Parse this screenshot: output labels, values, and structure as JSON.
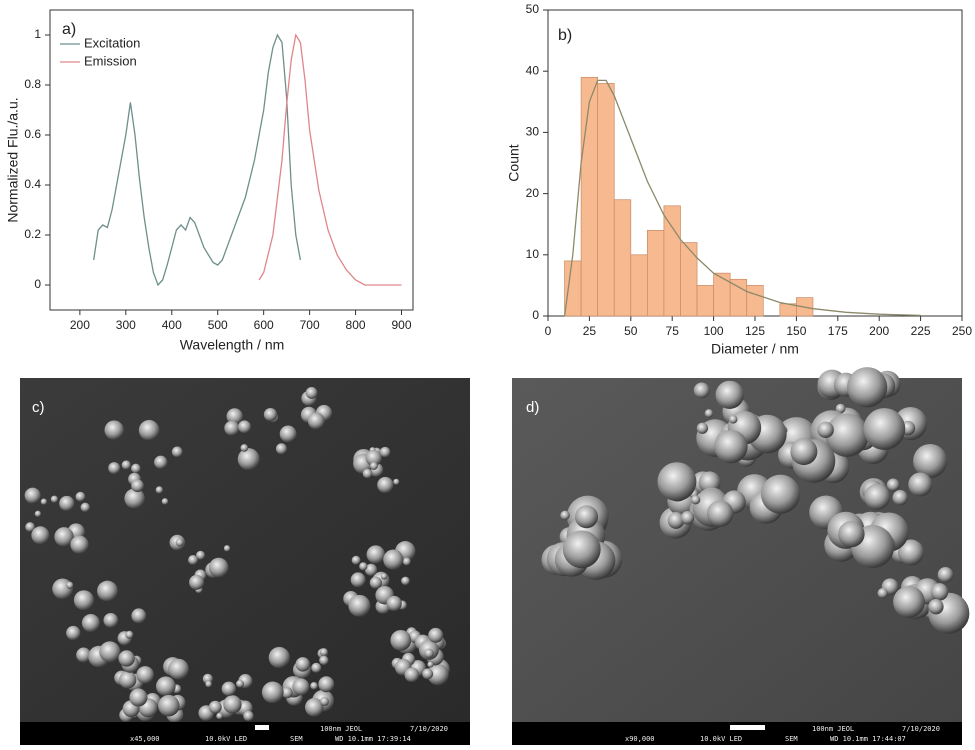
{
  "chart_data": [
    {
      "type": "line",
      "annotation": "a)",
      "xlabel": "Wavelength / nm",
      "ylabel": "Normalized Flu./a.u.",
      "xlim": [
        135,
        925
      ],
      "xticks": [
        200,
        300,
        400,
        500,
        600,
        700,
        800,
        900
      ],
      "ylim": [
        -0.1,
        1.1
      ],
      "yticks": [
        0,
        0.2,
        0.4,
        0.6,
        0.8,
        1
      ],
      "legend": "upper left",
      "series": [
        {
          "name": "Excitation",
          "color": "#6f8f8c",
          "x": [
            230,
            240,
            250,
            260,
            270,
            280,
            290,
            300,
            310,
            320,
            330,
            340,
            350,
            360,
            370,
            380,
            390,
            400,
            410,
            420,
            430,
            440,
            450,
            460,
            470,
            480,
            490,
            500,
            510,
            520,
            540,
            560,
            580,
            600,
            610,
            620,
            630,
            640,
            650,
            660,
            670,
            680
          ],
          "values": [
            0.1,
            0.22,
            0.24,
            0.23,
            0.3,
            0.4,
            0.5,
            0.6,
            0.73,
            0.6,
            0.42,
            0.27,
            0.15,
            0.05,
            0.0,
            0.02,
            0.08,
            0.15,
            0.22,
            0.24,
            0.22,
            0.27,
            0.25,
            0.2,
            0.15,
            0.12,
            0.09,
            0.08,
            0.1,
            0.15,
            0.25,
            0.35,
            0.5,
            0.7,
            0.85,
            0.95,
            1.0,
            0.97,
            0.75,
            0.4,
            0.2,
            0.1
          ]
        },
        {
          "name": "Emission",
          "color": "#e0868a",
          "x": [
            590,
            600,
            620,
            640,
            650,
            660,
            670,
            680,
            690,
            700,
            720,
            740,
            760,
            780,
            800,
            820,
            850,
            900
          ],
          "values": [
            0.02,
            0.05,
            0.2,
            0.5,
            0.72,
            0.9,
            1.0,
            0.97,
            0.82,
            0.62,
            0.38,
            0.22,
            0.12,
            0.06,
            0.02,
            0.0,
            0.0,
            0.0
          ]
        }
      ]
    },
    {
      "type": "histogram",
      "annotation": "b)",
      "xlabel": "Diameter / nm",
      "ylabel": "Count",
      "xlim": [
        0,
        250
      ],
      "xticks": [
        0,
        25,
        50,
        75,
        100,
        125,
        150,
        175,
        200,
        225,
        250
      ],
      "ylim": [
        0,
        50
      ],
      "yticks": [
        0,
        10,
        20,
        30,
        40,
        50
      ],
      "color": "#f7b98f",
      "bins": [
        10,
        20,
        30,
        40,
        50,
        60,
        70,
        80,
        90,
        100,
        110,
        120,
        130,
        140,
        150,
        160,
        170
      ],
      "values": [
        9,
        39,
        38,
        19,
        10,
        14,
        18,
        12,
        5,
        7,
        6,
        5,
        0,
        2,
        3,
        0
      ],
      "fit": {
        "color": "#8c8a6a",
        "x": [
          10,
          15,
          20,
          25,
          30,
          35,
          40,
          50,
          60,
          70,
          80,
          90,
          100,
          120,
          140,
          160,
          180,
          200,
          225
        ],
        "values": [
          0,
          10,
          25,
          35,
          38.5,
          38.5,
          36,
          29,
          22,
          16.5,
          12.5,
          9.5,
          7,
          4,
          2.2,
          1.2,
          0.6,
          0.3,
          0.1
        ]
      }
    }
  ],
  "images": [
    {
      "label": "c)",
      "magnification": "x45,000",
      "voltage": "10.0kV LED",
      "mode": "SEM",
      "wd": "WD 10.1mm 17:39:14",
      "scale": "100nm JEOL",
      "date": "7/10/2020"
    },
    {
      "label": "d)",
      "magnification": "x90,000",
      "voltage": "10.0kV LED",
      "mode": "SEM",
      "wd": "WD 10.1mm 17:44:07",
      "scale": "100nm JEOL",
      "date": "7/10/2020"
    }
  ]
}
